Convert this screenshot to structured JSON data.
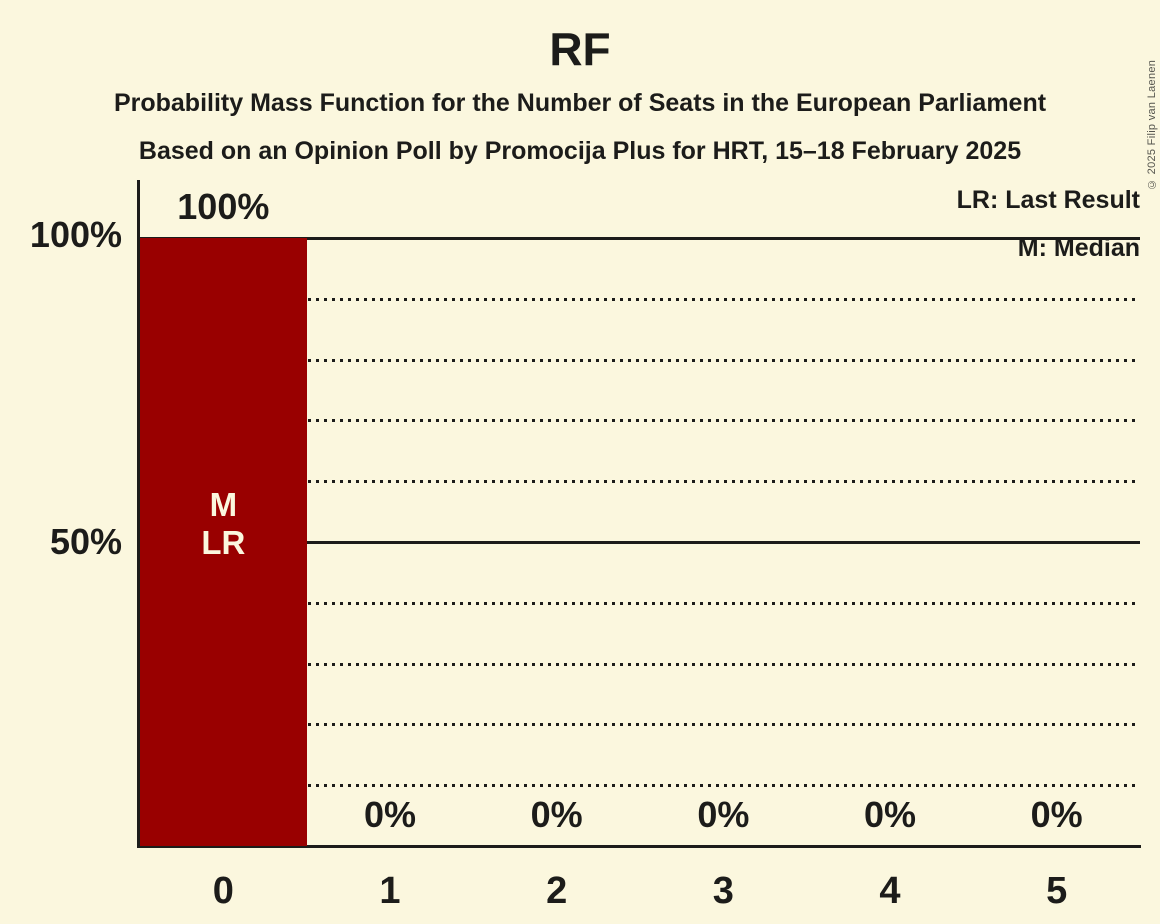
{
  "copyright": "© 2025 Filip van Laenen",
  "chart_data": {
    "type": "bar",
    "title": "RF",
    "subtitle1": "Probability Mass Function for the Number of Seats in the European Parliament",
    "subtitle2": "Based on an Opinion Poll by Promocija Plus for HRT, 15–18 February 2025",
    "categories": [
      "0",
      "1",
      "2",
      "3",
      "4",
      "5"
    ],
    "values": [
      100,
      0,
      0,
      0,
      0,
      0
    ],
    "value_labels": [
      "100%",
      "0%",
      "0%",
      "0%",
      "0%",
      "0%"
    ],
    "ylim": [
      0,
      100
    ],
    "ytick_labels": [
      "100%",
      "50%"
    ],
    "ytick_values": [
      100,
      50
    ],
    "gridlines": {
      "solid": [
        100,
        50
      ],
      "dotted": [
        90,
        80,
        70,
        60,
        40,
        30,
        20,
        10
      ]
    },
    "legend": [
      {
        "label": "LR: Last Result"
      },
      {
        "label": "M: Median"
      }
    ],
    "annotations": [
      {
        "category_index": 0,
        "text": "M\nLR"
      }
    ],
    "colors": {
      "bar": "#990000",
      "background": "#FBF7DE",
      "text": "#1C1C1A",
      "bar_label_text": "#FBF7DE"
    }
  }
}
